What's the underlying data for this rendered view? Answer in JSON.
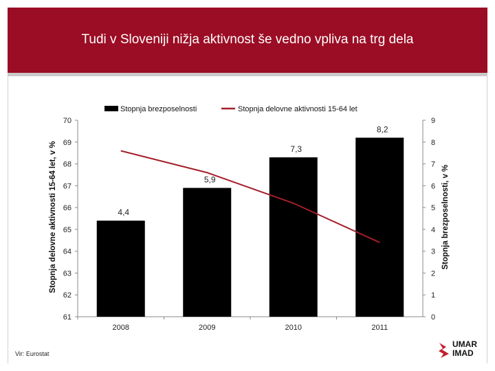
{
  "slide": {
    "title": "Tudi v Sloveniji nižja aktivnost še vedno vpliva na trg dela",
    "source": "Vir: Eurostat",
    "logo_line1": "UMAR",
    "logo_line2": "IMAD"
  },
  "colors": {
    "header": "#9b0d24",
    "bar": "#000000",
    "line": "#a41e2a"
  },
  "chart_data": {
    "type": "bar",
    "categories": [
      "2008",
      "2009",
      "2010",
      "2011"
    ],
    "series": [
      {
        "name": "Stopnja brezposelnosti",
        "type": "bar",
        "axis": "right",
        "values": [
          4.4,
          5.9,
          7.3,
          8.2
        ],
        "labels": [
          "4,4",
          "5,9",
          "7,3",
          "8,2"
        ]
      },
      {
        "name": "Stopnja delovne aktivnosti 15-64 let",
        "type": "line",
        "axis": "left",
        "values": [
          68.6,
          67.6,
          66.2,
          64.4
        ]
      }
    ],
    "y_left": {
      "label": "Stopnja delovne aktivnosti 15-64 let, v %",
      "range": [
        61,
        70
      ],
      "ticks": [
        "61",
        "62",
        "63",
        "64",
        "65",
        "66",
        "67",
        "68",
        "69",
        "70"
      ]
    },
    "y_right": {
      "label": "Stopnja brezposelnosti, v %",
      "range": [
        0,
        9
      ],
      "ticks": [
        "0",
        "1",
        "2",
        "3",
        "4",
        "5",
        "6",
        "7",
        "8",
        "9"
      ]
    },
    "legend_position": "top",
    "grid": false
  }
}
